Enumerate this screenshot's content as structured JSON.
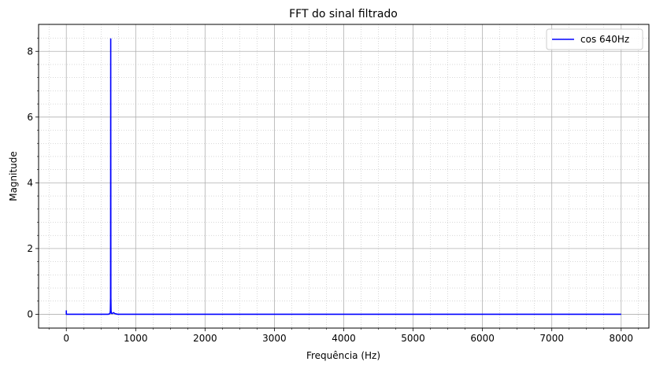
{
  "chart_data": {
    "type": "line",
    "title": "FFT do sinal filtrado",
    "xlabel": "Frequência (Hz)",
    "ylabel": "Magnitude",
    "xlim": [
      -400,
      8400
    ],
    "ylim": [
      -0.42,
      8.82
    ],
    "grid": true,
    "minor_grid": true,
    "legend_placement": "top-right",
    "x_ticks": [
      0,
      1000,
      2000,
      3000,
      4000,
      5000,
      6000,
      7000,
      8000
    ],
    "x_tick_labels": [
      "0",
      "1000",
      "2000",
      "3000",
      "4000",
      "5000",
      "6000",
      "7000",
      "8000"
    ],
    "y_ticks": [
      0,
      2,
      4,
      6,
      8
    ],
    "y_tick_labels": [
      "0",
      "2",
      "4",
      "6",
      "8"
    ],
    "x_minor_ticks": [
      -250,
      250,
      500,
      750,
      1250,
      1500,
      1750,
      2250,
      2500,
      2750,
      3250,
      3500,
      3750,
      4250,
      4500,
      4750,
      5250,
      5500,
      5750,
      6250,
      6500,
      6750,
      7250,
      7500,
      7750,
      8250
    ],
    "y_minor_ticks": [
      0.4,
      0.8,
      1.2,
      1.6,
      2.4,
      2.8,
      3.2,
      3.6,
      4.4,
      4.8,
      5.2,
      5.6,
      6.4,
      6.8,
      7.2,
      7.6,
      8.4
    ],
    "series": [
      {
        "name": "cos 640Hz",
        "color": "#0000ff",
        "x": [
          0,
          0.01,
          10,
          20,
          600,
          620,
          630,
          635,
          638,
          640,
          642,
          645,
          650,
          660,
          680,
          700,
          720,
          740,
          760,
          800,
          1000,
          2000,
          4000,
          6000,
          8000
        ],
        "y": [
          0.12,
          0.0,
          0.0,
          0.0,
          0.0,
          0.01,
          0.03,
          0.1,
          0.5,
          8.38,
          0.5,
          0.1,
          0.03,
          0.02,
          0.05,
          0.02,
          0.01,
          0.0,
          0.0,
          0.0,
          0.0,
          0.0,
          0.0,
          0.0,
          0.0
        ]
      }
    ]
  }
}
